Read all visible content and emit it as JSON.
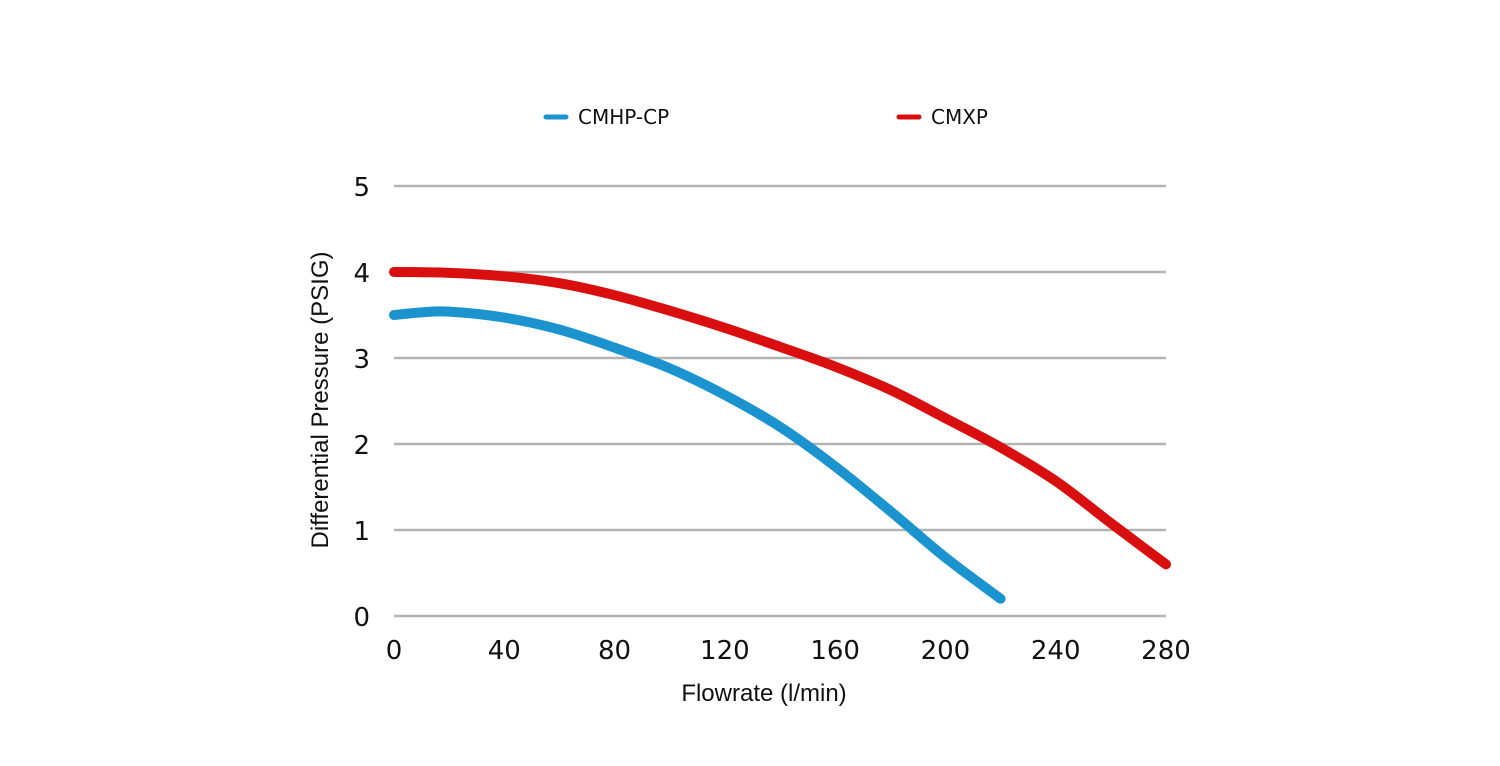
{
  "chart_data": {
    "type": "line",
    "title": "",
    "xlabel": "Flowrate (l/min)",
    "ylabel": "Differential Pressure (PSIG)",
    "xlim": [
      0,
      280
    ],
    "ylim": [
      0,
      5
    ],
    "xticks": [
      "0",
      "40",
      "80",
      "120",
      "160",
      "200",
      "240",
      "280"
    ],
    "yticks": [
      "0",
      "1",
      "2",
      "3",
      "4",
      "5"
    ],
    "grid": "horizontal",
    "legend": "top-center",
    "series": [
      {
        "name": "CMHP-CP",
        "color": "#1b93cf",
        "points": [
          [
            0,
            3.5
          ],
          [
            10,
            3.53
          ],
          [
            20,
            3.54
          ],
          [
            40,
            3.47
          ],
          [
            60,
            3.33
          ],
          [
            80,
            3.12
          ],
          [
            100,
            2.88
          ],
          [
            120,
            2.57
          ],
          [
            140,
            2.2
          ],
          [
            160,
            1.74
          ],
          [
            180,
            1.22
          ],
          [
            200,
            0.68
          ],
          [
            220,
            0.2
          ]
        ]
      },
      {
        "name": "CMXP",
        "color": "#d90f0f",
        "points": [
          [
            0,
            4.0
          ],
          [
            20,
            3.99
          ],
          [
            40,
            3.95
          ],
          [
            60,
            3.87
          ],
          [
            80,
            3.73
          ],
          [
            100,
            3.55
          ],
          [
            120,
            3.35
          ],
          [
            140,
            3.13
          ],
          [
            160,
            2.9
          ],
          [
            180,
            2.63
          ],
          [
            200,
            2.3
          ],
          [
            220,
            1.96
          ],
          [
            240,
            1.57
          ],
          [
            260,
            1.08
          ],
          [
            280,
            0.6
          ]
        ]
      }
    ]
  }
}
